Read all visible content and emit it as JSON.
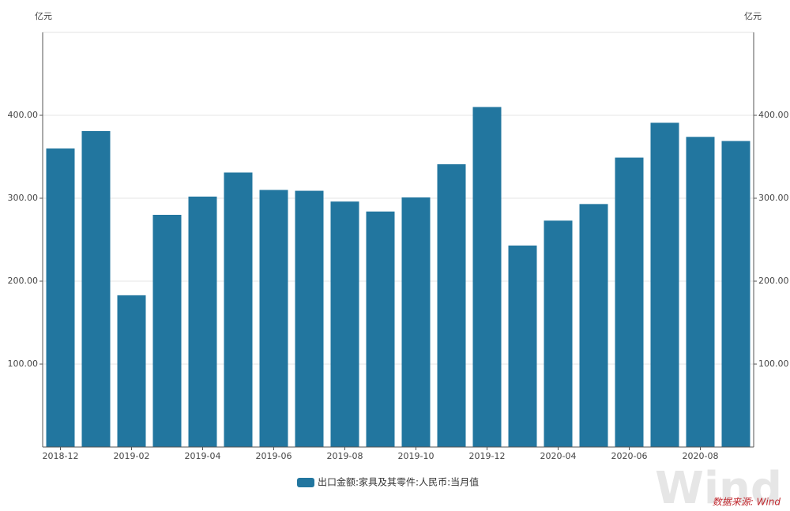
{
  "chart_data": {
    "type": "bar",
    "y_unit": "亿元",
    "y2_unit": "亿元",
    "categories": [
      "2018-12",
      null,
      "2019-02",
      null,
      "2019-04",
      null,
      "2019-06",
      null,
      "2019-08",
      null,
      "2019-10",
      null,
      "2019-12",
      null,
      "2020-04",
      null,
      "2020-06",
      null,
      "2020-08",
      null
    ],
    "series": [
      {
        "name": "出口金额:家具及其零件:人民币:当月值",
        "color": "#22769f",
        "values": [
          360,
          381,
          183,
          280,
          302,
          331,
          310,
          309,
          296,
          284,
          301,
          341,
          410,
          243,
          273,
          293,
          349,
          391,
          374,
          369
        ]
      }
    ],
    "ylim": [
      0,
      500
    ],
    "yticks": [
      {
        "value": 100,
        "label": "100.00"
      },
      {
        "value": 200,
        "label": "200.00"
      },
      {
        "value": 300,
        "label": "300.00"
      },
      {
        "value": 400,
        "label": "400.00"
      }
    ],
    "y2lim": [
      0,
      500
    ],
    "y2ticks": [
      {
        "value": 100,
        "label": "100.00"
      },
      {
        "value": 200,
        "label": "200.00"
      },
      {
        "value": 300,
        "label": "300.00"
      },
      {
        "value": 400,
        "label": "400.00"
      }
    ],
    "grid": true,
    "legend": "bottom",
    "watermark": "Wind",
    "source": "数据来源: Wind"
  }
}
